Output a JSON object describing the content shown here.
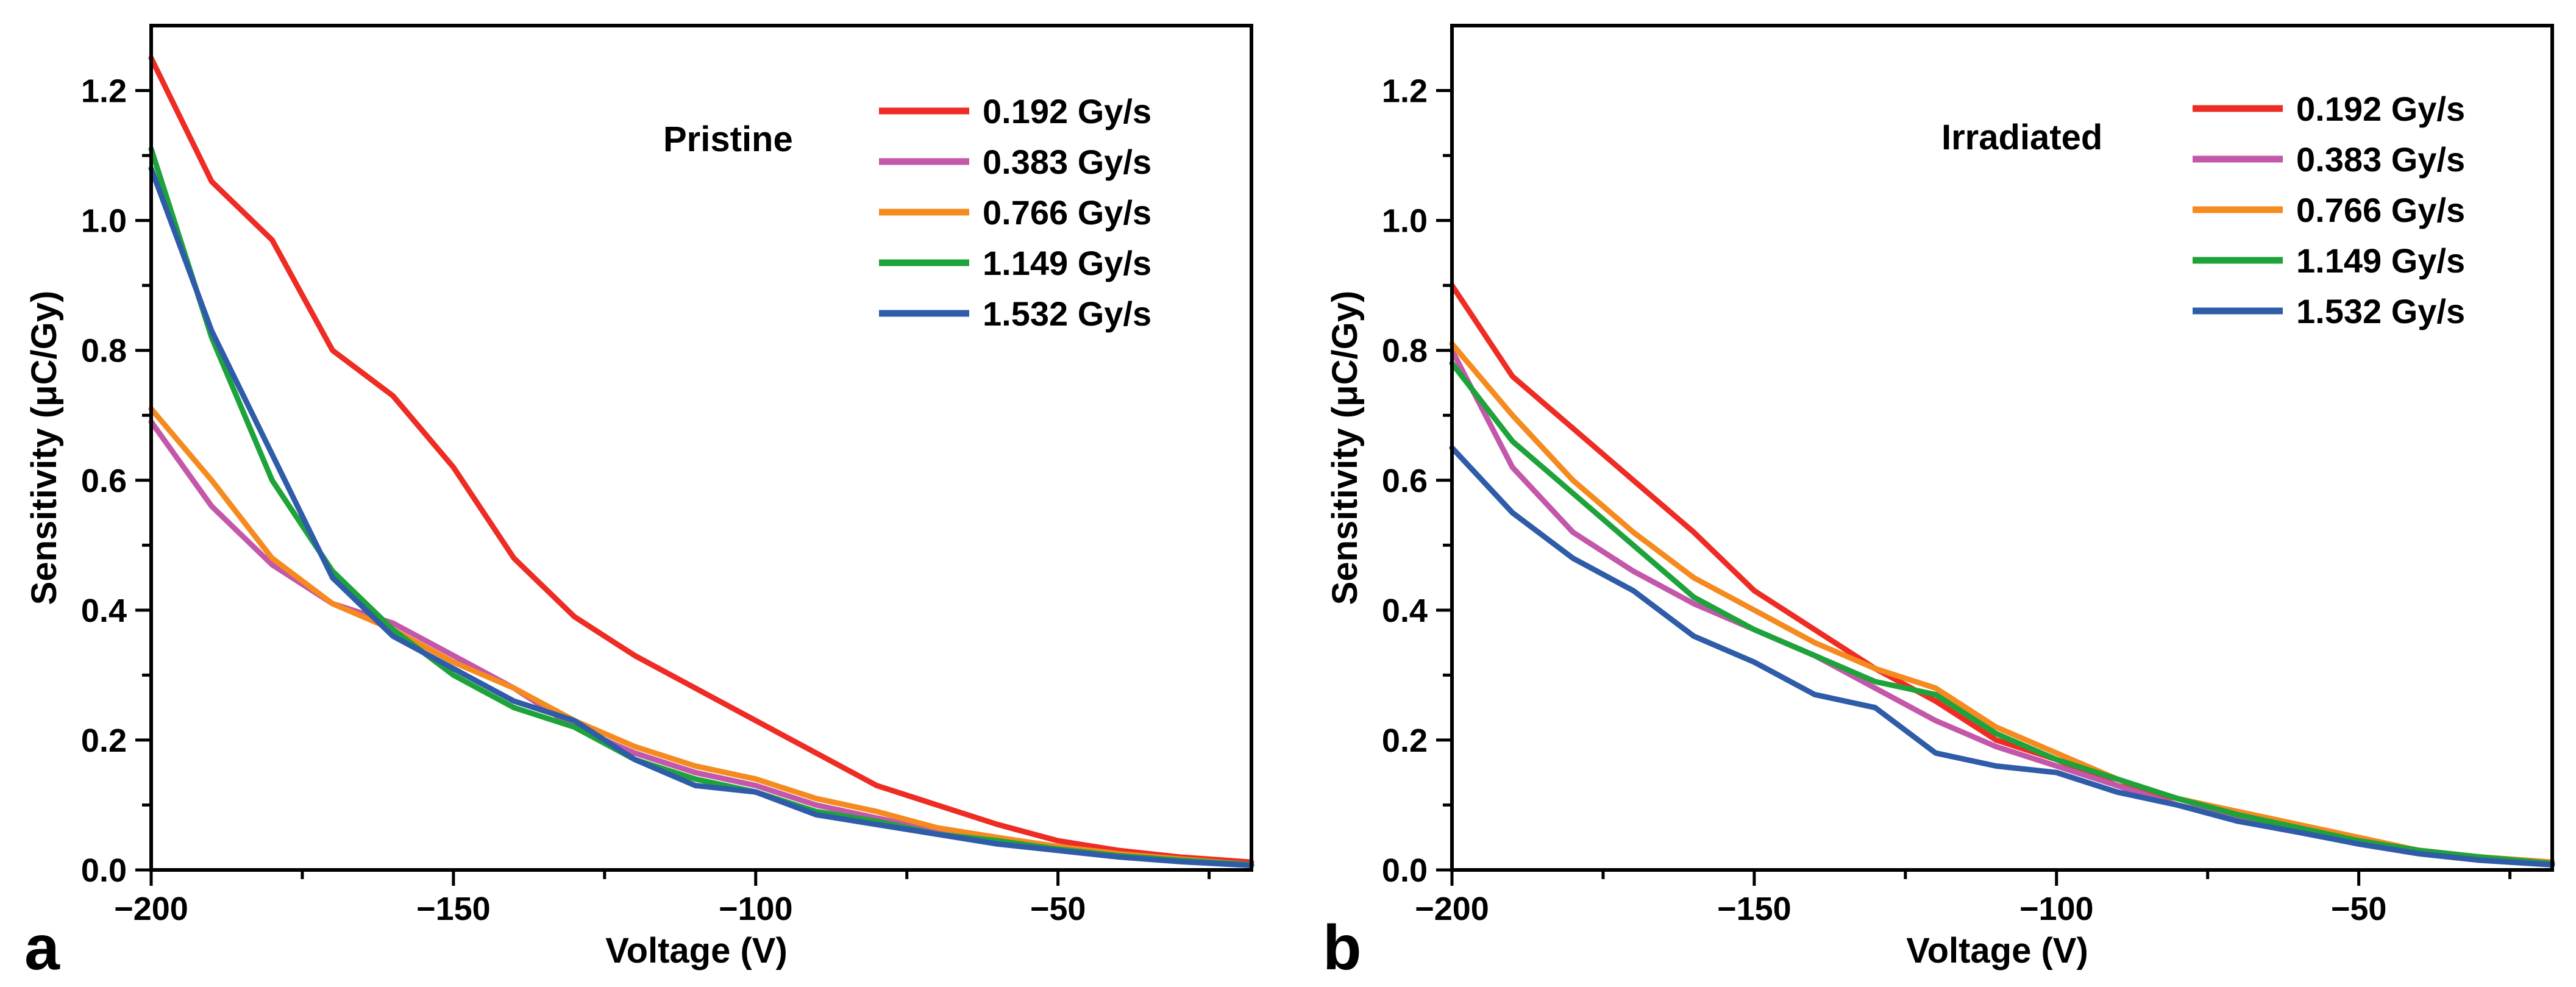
{
  "chart_data": [
    {
      "type": "line",
      "panel_label": "a",
      "annotation": "Pristine",
      "xlabel": "Voltage (V)",
      "ylabel": "Sensitivity (μC/Gy)",
      "xlim": [
        -200,
        -18
      ],
      "ylim": [
        0,
        1.3
      ],
      "xticks": [
        -200,
        -150,
        -100,
        -50
      ],
      "xtick_labels": [
        "−200",
        "−150",
        "−100",
        "−50"
      ],
      "yticks": [
        0,
        0.2,
        0.4,
        0.6,
        0.8,
        1.0,
        1.2
      ],
      "ytick_labels": [
        "0.0",
        "0.2",
        "0.4",
        "0.6",
        "0.8",
        "1.0",
        "1.2"
      ],
      "grid": false,
      "legend_position": "top-right",
      "x": [
        -200,
        -190,
        -180,
        -170,
        -160,
        -150,
        -140,
        -130,
        -120,
        -110,
        -100,
        -90,
        -80,
        -70,
        -60,
        -50,
        -40,
        -30,
        -18
      ],
      "series": [
        {
          "name": "0.192 Gy/s",
          "color": "#ee2c24",
          "values": [
            1.25,
            1.06,
            0.97,
            0.8,
            0.73,
            0.62,
            0.48,
            0.39,
            0.33,
            0.28,
            0.23,
            0.18,
            0.13,
            0.1,
            0.07,
            0.045,
            0.03,
            0.02,
            0.012
          ]
        },
        {
          "name": "0.383 Gy/s",
          "color": "#c357a9",
          "values": [
            0.69,
            0.56,
            0.47,
            0.41,
            0.38,
            0.33,
            0.28,
            0.22,
            0.18,
            0.15,
            0.13,
            0.1,
            0.08,
            0.06,
            0.045,
            0.033,
            0.022,
            0.015,
            0.008
          ]
        },
        {
          "name": "0.766 Gy/s",
          "color": "#f58a1f",
          "values": [
            0.71,
            0.6,
            0.48,
            0.41,
            0.37,
            0.32,
            0.28,
            0.23,
            0.19,
            0.16,
            0.14,
            0.11,
            0.09,
            0.065,
            0.05,
            0.036,
            0.025,
            0.017,
            0.008
          ]
        },
        {
          "name": "1.149 Gy/s",
          "color": "#1ea33a",
          "values": [
            1.11,
            0.82,
            0.6,
            0.46,
            0.37,
            0.3,
            0.25,
            0.22,
            0.17,
            0.14,
            0.12,
            0.09,
            0.075,
            0.055,
            0.045,
            0.032,
            0.022,
            0.015,
            0.008
          ]
        },
        {
          "name": "1.532 Gy/s",
          "color": "#2f5ca8",
          "values": [
            1.08,
            0.83,
            0.64,
            0.45,
            0.36,
            0.31,
            0.26,
            0.23,
            0.17,
            0.13,
            0.12,
            0.085,
            0.07,
            0.055,
            0.04,
            0.03,
            0.02,
            0.013,
            0.007
          ]
        }
      ]
    },
    {
      "type": "line",
      "panel_label": "b",
      "annotation": "Irradiated",
      "xlabel": "Voltage (V)",
      "ylabel": "Sensitivity (μC/Gy)",
      "xlim": [
        -200,
        -18
      ],
      "ylim": [
        0,
        1.3
      ],
      "xticks": [
        -200,
        -150,
        -100,
        -50
      ],
      "xtick_labels": [
        "−200",
        "−150",
        "−100",
        "−50"
      ],
      "yticks": [
        0,
        0.2,
        0.4,
        0.6,
        0.8,
        1.0,
        1.2
      ],
      "ytick_labels": [
        "0.0",
        "0.2",
        "0.4",
        "0.6",
        "0.8",
        "1.0",
        "1.2"
      ],
      "grid": false,
      "legend_position": "top-right",
      "x": [
        -200,
        -190,
        -180,
        -170,
        -160,
        -150,
        -140,
        -130,
        -120,
        -110,
        -100,
        -90,
        -80,
        -70,
        -60,
        -50,
        -40,
        -30,
        -18
      ],
      "series": [
        {
          "name": "0.192 Gy/s",
          "color": "#ee2c24",
          "values": [
            0.9,
            0.76,
            0.68,
            0.6,
            0.52,
            0.43,
            0.37,
            0.31,
            0.26,
            0.2,
            0.17,
            0.13,
            0.11,
            0.085,
            0.06,
            0.045,
            0.03,
            0.02,
            0.012
          ]
        },
        {
          "name": "0.383 Gy/s",
          "color": "#c357a9",
          "values": [
            0.8,
            0.62,
            0.52,
            0.46,
            0.41,
            0.37,
            0.33,
            0.28,
            0.23,
            0.19,
            0.16,
            0.13,
            0.1,
            0.08,
            0.06,
            0.04,
            0.025,
            0.015,
            0.008
          ]
        },
        {
          "name": "0.766 Gy/s",
          "color": "#f58a1f",
          "values": [
            0.81,
            0.7,
            0.6,
            0.52,
            0.45,
            0.4,
            0.35,
            0.31,
            0.28,
            0.22,
            0.18,
            0.14,
            0.11,
            0.09,
            0.07,
            0.05,
            0.03,
            0.02,
            0.012
          ]
        },
        {
          "name": "1.149 Gy/s",
          "color": "#1ea33a",
          "values": [
            0.78,
            0.66,
            0.58,
            0.5,
            0.42,
            0.37,
            0.33,
            0.29,
            0.27,
            0.21,
            0.17,
            0.14,
            0.11,
            0.085,
            0.065,
            0.045,
            0.03,
            0.02,
            0.01
          ]
        },
        {
          "name": "1.532 Gy/s",
          "color": "#2f5ca8",
          "values": [
            0.65,
            0.55,
            0.48,
            0.43,
            0.36,
            0.32,
            0.27,
            0.25,
            0.18,
            0.16,
            0.15,
            0.12,
            0.1,
            0.075,
            0.058,
            0.04,
            0.025,
            0.015,
            0.008
          ]
        }
      ]
    }
  ]
}
